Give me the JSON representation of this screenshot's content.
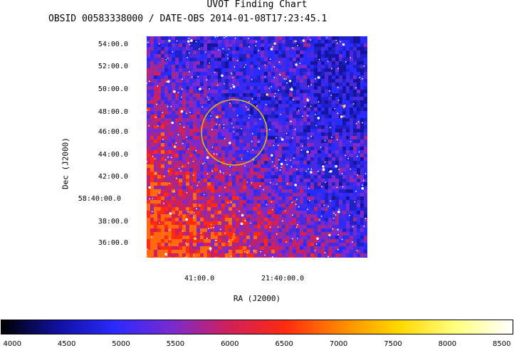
{
  "chart_data": {
    "type": "heatmap",
    "title": "UVOT Finding Chart",
    "subtitle": "OBSID 00583338000 / DATE-OBS 2014-01-08T17:23:45.1",
    "xlabel": "RA (J2000)",
    "ylabel": "Dec (J2000)",
    "x_ticks": [
      "41:00.0",
      "21:40:00.0"
    ],
    "y_ticks": [
      "54:00.0",
      "52:00.0",
      "50:00.0",
      "48:00.0",
      "46:00.0",
      "44:00.0",
      "42:00.0",
      "58:40:00.0",
      "38:00.0",
      "36:00.0"
    ],
    "colorbar": {
      "ticks": [
        4000,
        4500,
        5000,
        5500,
        6000,
        6500,
        7000,
        7500,
        8000,
        8500
      ],
      "range": [
        3900,
        8600
      ],
      "colormap": [
        "#000000",
        "#1010a0",
        "#2a2aff",
        "#7a2ad0",
        "#d0205a",
        "#ff2a10",
        "#ff8a00",
        "#ffd800",
        "#ffff80",
        "#ffffff"
      ]
    },
    "annotations": [
      {
        "type": "circle",
        "color": "#f0b400"
      }
    ]
  }
}
